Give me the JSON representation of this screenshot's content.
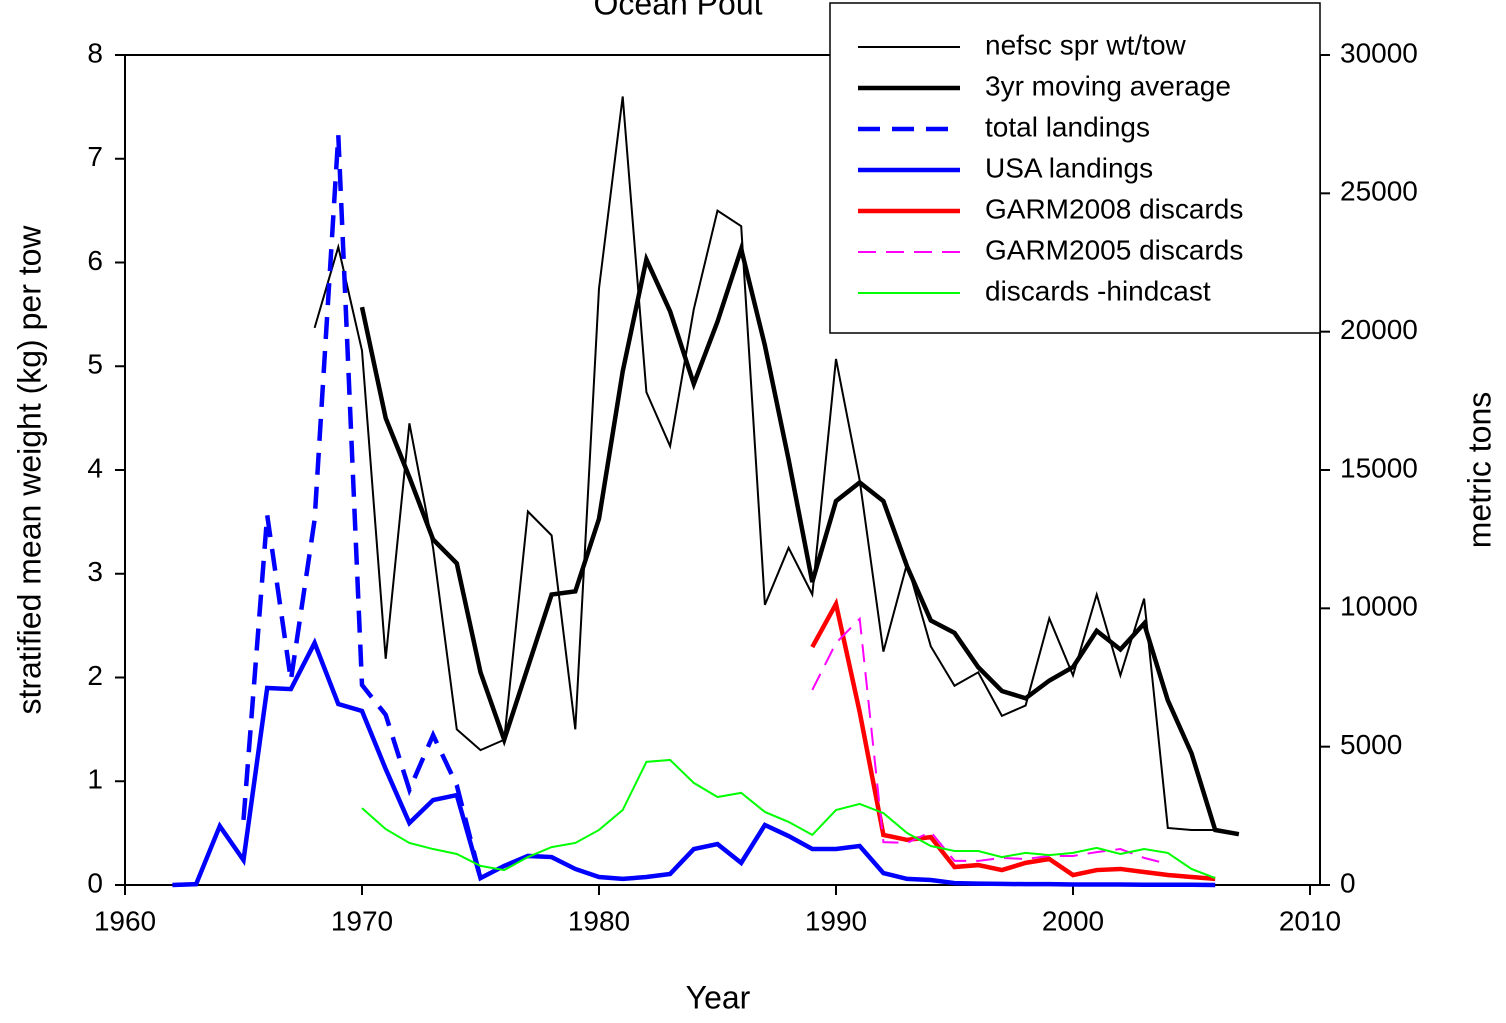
{
  "chart_data": {
    "type": "line",
    "title": "Ocean Pout",
    "x_label": "Year",
    "y_label": "stratified mean weight (kg) per tow",
    "y2_label": "metric tons",
    "xlim": [
      1960,
      2010
    ],
    "xticks": [
      1960,
      1970,
      1980,
      1990,
      2000,
      2010
    ],
    "ylim": [
      0,
      8
    ],
    "yticks": [
      0,
      1,
      2,
      3,
      4,
      5,
      6,
      7,
      8
    ],
    "y2lim": [
      0,
      30000
    ],
    "y2ticks": [
      0,
      5000,
      10000,
      15000,
      20000,
      25000,
      30000
    ],
    "grid": false,
    "legend": "upper right",
    "series": [
      {
        "name": "nefsc spr wt/tow",
        "color": "#000000",
        "line_style": "solid",
        "line_width": "thin",
        "axis": "y",
        "x": [
          1968,
          1969,
          1970,
          1971,
          1972,
          1973,
          1974,
          1975,
          1976,
          1977,
          1978,
          1979,
          1980,
          1981,
          1982,
          1983,
          1984,
          1985,
          1986,
          1987,
          1988,
          1989,
          1990,
          1991,
          1992,
          1993,
          1994,
          1995,
          1996,
          1997,
          1998,
          1999,
          2000,
          2001,
          2002,
          2003,
          2004,
          2005,
          2006,
          2007
        ],
        "values": [
          5.37,
          6.15,
          5.15,
          2.18,
          4.45,
          3.25,
          1.5,
          1.3,
          1.4,
          3.6,
          3.37,
          1.5,
          5.75,
          7.6,
          4.75,
          4.23,
          5.55,
          6.5,
          6.35,
          2.7,
          3.25,
          2.8,
          5.07,
          3.9,
          2.25,
          3.1,
          2.3,
          1.92,
          2.05,
          1.63,
          1.73,
          2.57,
          2.02,
          2.8,
          2.02,
          2.76,
          0.55,
          0.53,
          0.53,
          0.5
        ]
      },
      {
        "name": "3yr moving average",
        "color": "#000000",
        "line_style": "solid",
        "line_width": "thick",
        "axis": "y",
        "x": [
          1970,
          1971,
          1972,
          1973,
          1974,
          1975,
          1976,
          1977,
          1978,
          1979,
          1980,
          1981,
          1982,
          1983,
          1984,
          1985,
          1986,
          1987,
          1988,
          1989,
          1990,
          1991,
          1992,
          1993,
          1994,
          1995,
          1996,
          1997,
          1998,
          1999,
          2000,
          2001,
          2002,
          2003,
          2004,
          2005,
          2006,
          2007
        ],
        "values": [
          5.57,
          4.5,
          3.93,
          3.33,
          3.1,
          2.05,
          1.4,
          2.1,
          2.8,
          2.83,
          3.53,
          4.95,
          6.03,
          5.53,
          4.83,
          5.43,
          6.13,
          5.2,
          4.1,
          2.92,
          3.7,
          3.88,
          3.7,
          3.07,
          2.55,
          2.43,
          2.1,
          1.87,
          1.8,
          1.97,
          2.1,
          2.45,
          2.27,
          2.52,
          1.78,
          1.27,
          0.53,
          0.49
        ]
      },
      {
        "name": "total landings",
        "color": "#0000ff",
        "line_style": "dashed",
        "line_width": "thick",
        "axis": "y2",
        "x": [
          1965,
          1966,
          1967,
          1968,
          1969,
          1970,
          1971,
          1972,
          1973,
          1974,
          1975
        ],
        "values": [
          2350,
          13370,
          7400,
          13200,
          27100,
          7230,
          6150,
          3440,
          5420,
          3600,
          250
        ]
      },
      {
        "name": "USA landings",
        "color": "#0000ff",
        "line_style": "solid",
        "line_width": "thick",
        "axis": "y2",
        "x": [
          1962,
          1963,
          1964,
          1965,
          1966,
          1967,
          1968,
          1969,
          1970,
          1971,
          1972,
          1973,
          1974,
          1975,
          1976,
          1977,
          1978,
          1979,
          1980,
          1981,
          1982,
          1983,
          1984,
          1985,
          1986,
          1987,
          1988,
          1989,
          1990,
          1991,
          1992,
          1993,
          1994,
          1995,
          1996,
          1997,
          1998,
          1999,
          2000,
          2001,
          2002,
          2003,
          2004,
          2005,
          2006
        ],
        "values": [
          0,
          30,
          2130,
          900,
          7120,
          7080,
          8750,
          6540,
          6290,
          4190,
          2240,
          3070,
          3250,
          250,
          690,
          1050,
          1010,
          580,
          290,
          220,
          290,
          400,
          1300,
          1480,
          800,
          2170,
          1770,
          1300,
          1300,
          1410,
          430,
          220,
          180,
          70,
          50,
          40,
          30,
          30,
          20,
          20,
          20,
          10,
          10,
          10,
          0
        ]
      },
      {
        "name": "GARM2008 discards",
        "color": "#ff0000",
        "line_style": "solid",
        "line_width": "thick",
        "axis": "y2",
        "x": [
          1989,
          1990,
          1991,
          1992,
          1993,
          1994,
          1995,
          1996,
          1997,
          1998,
          1999,
          2000,
          2001,
          2002,
          2003,
          2004,
          2005,
          2006
        ],
        "values": [
          8600,
          10160,
          6250,
          1810,
          1630,
          1730,
          650,
          720,
          540,
          800,
          940,
          360,
          540,
          580,
          470,
          360,
          290,
          220
        ]
      },
      {
        "name": "GARM2005 discards",
        "color": "#ff00ff",
        "line_style": "dashed",
        "line_width": "thin",
        "axis": "y2",
        "x": [
          1989,
          1990,
          1991,
          1992,
          1993,
          1994,
          1995,
          1996,
          1997,
          1998,
          1999,
          2000,
          2001,
          2002,
          2003,
          2004
        ],
        "values": [
          7050,
          8750,
          9620,
          1550,
          1520,
          1920,
          870,
          870,
          980,
          940,
          1050,
          1050,
          1190,
          1300,
          980,
          760
        ]
      },
      {
        "name": "discards -hindcast",
        "color": "#00ff00",
        "line_style": "solid",
        "line_width": "thin",
        "axis": "y2",
        "x": [
          1970,
          1971,
          1972,
          1973,
          1974,
          1975,
          1976,
          1977,
          1978,
          1979,
          1980,
          1981,
          1982,
          1983,
          1984,
          1985,
          1986,
          1987,
          1988,
          1989,
          1990,
          1991,
          1992,
          1993,
          1994,
          1995,
          1996,
          1997,
          1998,
          1999,
          2000,
          2001,
          2002,
          2003,
          2004,
          2005,
          2006
        ],
        "values": [
          2780,
          2020,
          1520,
          1300,
          1120,
          690,
          540,
          1010,
          1370,
          1520,
          1990,
          2710,
          4450,
          4520,
          3690,
          3180,
          3330,
          2640,
          2280,
          1810,
          2710,
          2930,
          2600,
          1880,
          1410,
          1230,
          1230,
          1010,
          1160,
          1080,
          1160,
          1340,
          1120,
          1300,
          1160,
          580,
          250
        ]
      }
    ]
  }
}
